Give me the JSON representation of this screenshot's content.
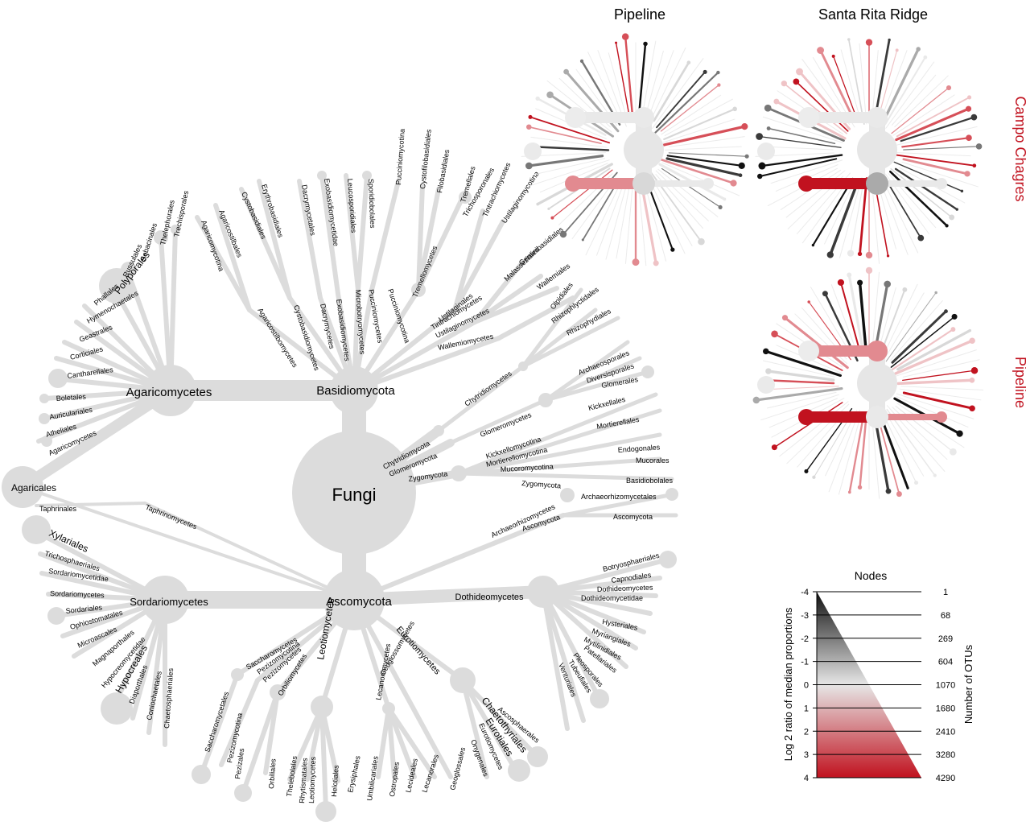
{
  "panels": {
    "top_left_title": "Pipeline",
    "top_right_title": "Santa Rita Ridge",
    "row1_label": "Campo Chagres",
    "row2_label": "Pipeline"
  },
  "colors": {
    "node": "#dcdcdc",
    "accent_red": "#c1121f",
    "dark": "#111111"
  },
  "main_tree": {
    "root": "Fungi",
    "phyla": {
      "basidio": "Basidiomycota",
      "asco": "Ascomycota",
      "chytrid": "Chytridiomycota",
      "glomero": "Glomeromycota",
      "zygo": "Zygomycota"
    },
    "classes": {
      "agaricomycetes": "Agaricomycetes",
      "sordariomycetes": "Sordariomycetes",
      "dothideomycetes": "Dothideomycetes",
      "leotiomycetes": "Leotiomycetes",
      "eurotiomycetes": "Eurotiomycetes",
      "taphrinomycetes": "Taphrinomycetes",
      "taphrinales": "Taphrinales",
      "agaricales": "Agaricales",
      "archaeorhizomycetes": "Archaeorhizomycetes",
      "ascomycota_leaf": "Ascomycota",
      "chytridiomycetes": "Chytridiomycetes",
      "glomeromycetes": "Glomeromycetes",
      "kickxellomycotina": "Kickxellomycotina",
      "mortierellomycotina": "Mortierellomycotina",
      "mucoromycotina": "Mucoromycotina",
      "zygomycota_leaf": "Zygomycota"
    },
    "agaricomycetes_leaves": [
      "Trechisporales",
      "Thelephorales",
      "Sebacinales",
      "Russulales",
      "Polyporales",
      "Phallales",
      "Hymenochaetales",
      "Geastrales",
      "Corticiales",
      "Cantharellales",
      "Boletales",
      "Auriculariales",
      "Atheliales",
      "Agaricomycetes"
    ],
    "basidio_leaves": [
      "Agaricomycotina",
      "Agaricostilbales",
      "Agaricostilbomycetes",
      "Cystobasidiales",
      "Cystobasidiomycetes",
      "Erythrobasidiales",
      "Dacrymycetales",
      "Dacrymycetes",
      "Exobasidiomycetidae",
      "Exobasidiomycetes",
      "Leucosporidiales",
      "Microbotryomycetes",
      "Sporidiobolales",
      "Pucciniomycetes",
      "Pucciniomycotina",
      "Pucciniomycotina",
      "Tremellomycetes",
      "Cystofilobasidiales",
      "Filobasidiales",
      "Tremellales",
      "Trichosporonales",
      "Tintrachiomycetes",
      "Ustilaginales",
      "Tintrachiomycetes",
      "Ustilaginomycetes",
      "Ustilaginomycotina",
      "Malasseziales",
      "Geminibasidiales",
      "Wallemiales",
      "Wallemiomycetes"
    ],
    "chytrid_leaves": [
      "Olpidiales",
      "Rhizophlyctidales",
      "Rhizophydiales"
    ],
    "glomero_leaves": [
      "Archaeosporales",
      "Diversisporales",
      "Glomerales"
    ],
    "zygo_leaves": [
      "Kickxellales",
      "Mortierellales",
      "Endogonales",
      "Mucorales",
      "Basidiobolales",
      "Archaeorhizomycetales",
      "Ascomycota"
    ],
    "dothideo_leaves": [
      "Botryosphaeriales",
      "Capnodiales",
      "Dothideomycetes",
      "Dothideomycetidae",
      "Hysteriales",
      "Myriangiales",
      "Mytilinidiales",
      "Patellariales",
      "Pleosporales",
      "Tubeufiales",
      "Venturiales"
    ],
    "sordario_leaves": [
      "Xylariales",
      "Trichosphaeriales",
      "Sordariomycetidae",
      "Sordariomycetes",
      "Sordariales",
      "Ophiostomatales",
      "Microascales",
      "Magnaporthales",
      "Hypocreomycetidae",
      "Hypocreales",
      "Diaporthales",
      "Coniochaetales",
      "Chaetosphaeriales"
    ],
    "pezizo_leaves": [
      "Saccharomycetes",
      "Pezizomycotina",
      "Pezizomycetes",
      "Orbiliomycetes",
      "Saccharomycetales",
      "Pezizomycotina",
      "Pezizales",
      "Orbiliales"
    ],
    "leotio_leaves": [
      "Thelebolales",
      "Rhytismatales",
      "Leotiomycetes",
      "Helotiales",
      "Erysiphales"
    ],
    "lecanoro_leaves": [
      "Lecanoromycetes",
      "Geoglossomycetes",
      "Umbilicariales",
      "Ostropales",
      "Lecideales",
      "Lecanorales",
      "Geoglossales"
    ],
    "euro_leaves": [
      "Chaetothyriales",
      "Eurotiales",
      "Eurotiomycetes",
      "Onygenales",
      "Ascosphaerales"
    ]
  },
  "legend": {
    "title": "Nodes",
    "y_label": "Log 2 ratio of median proportions",
    "y_ticks": [
      "-4",
      "-3",
      "-2",
      "-1",
      "0",
      "1",
      "2",
      "3",
      "4"
    ],
    "right_label": "Number of OTUs",
    "otu_ticks": [
      "1",
      "68",
      "269",
      "604",
      "1070",
      "1680",
      "2410",
      "3280",
      "4290"
    ]
  }
}
